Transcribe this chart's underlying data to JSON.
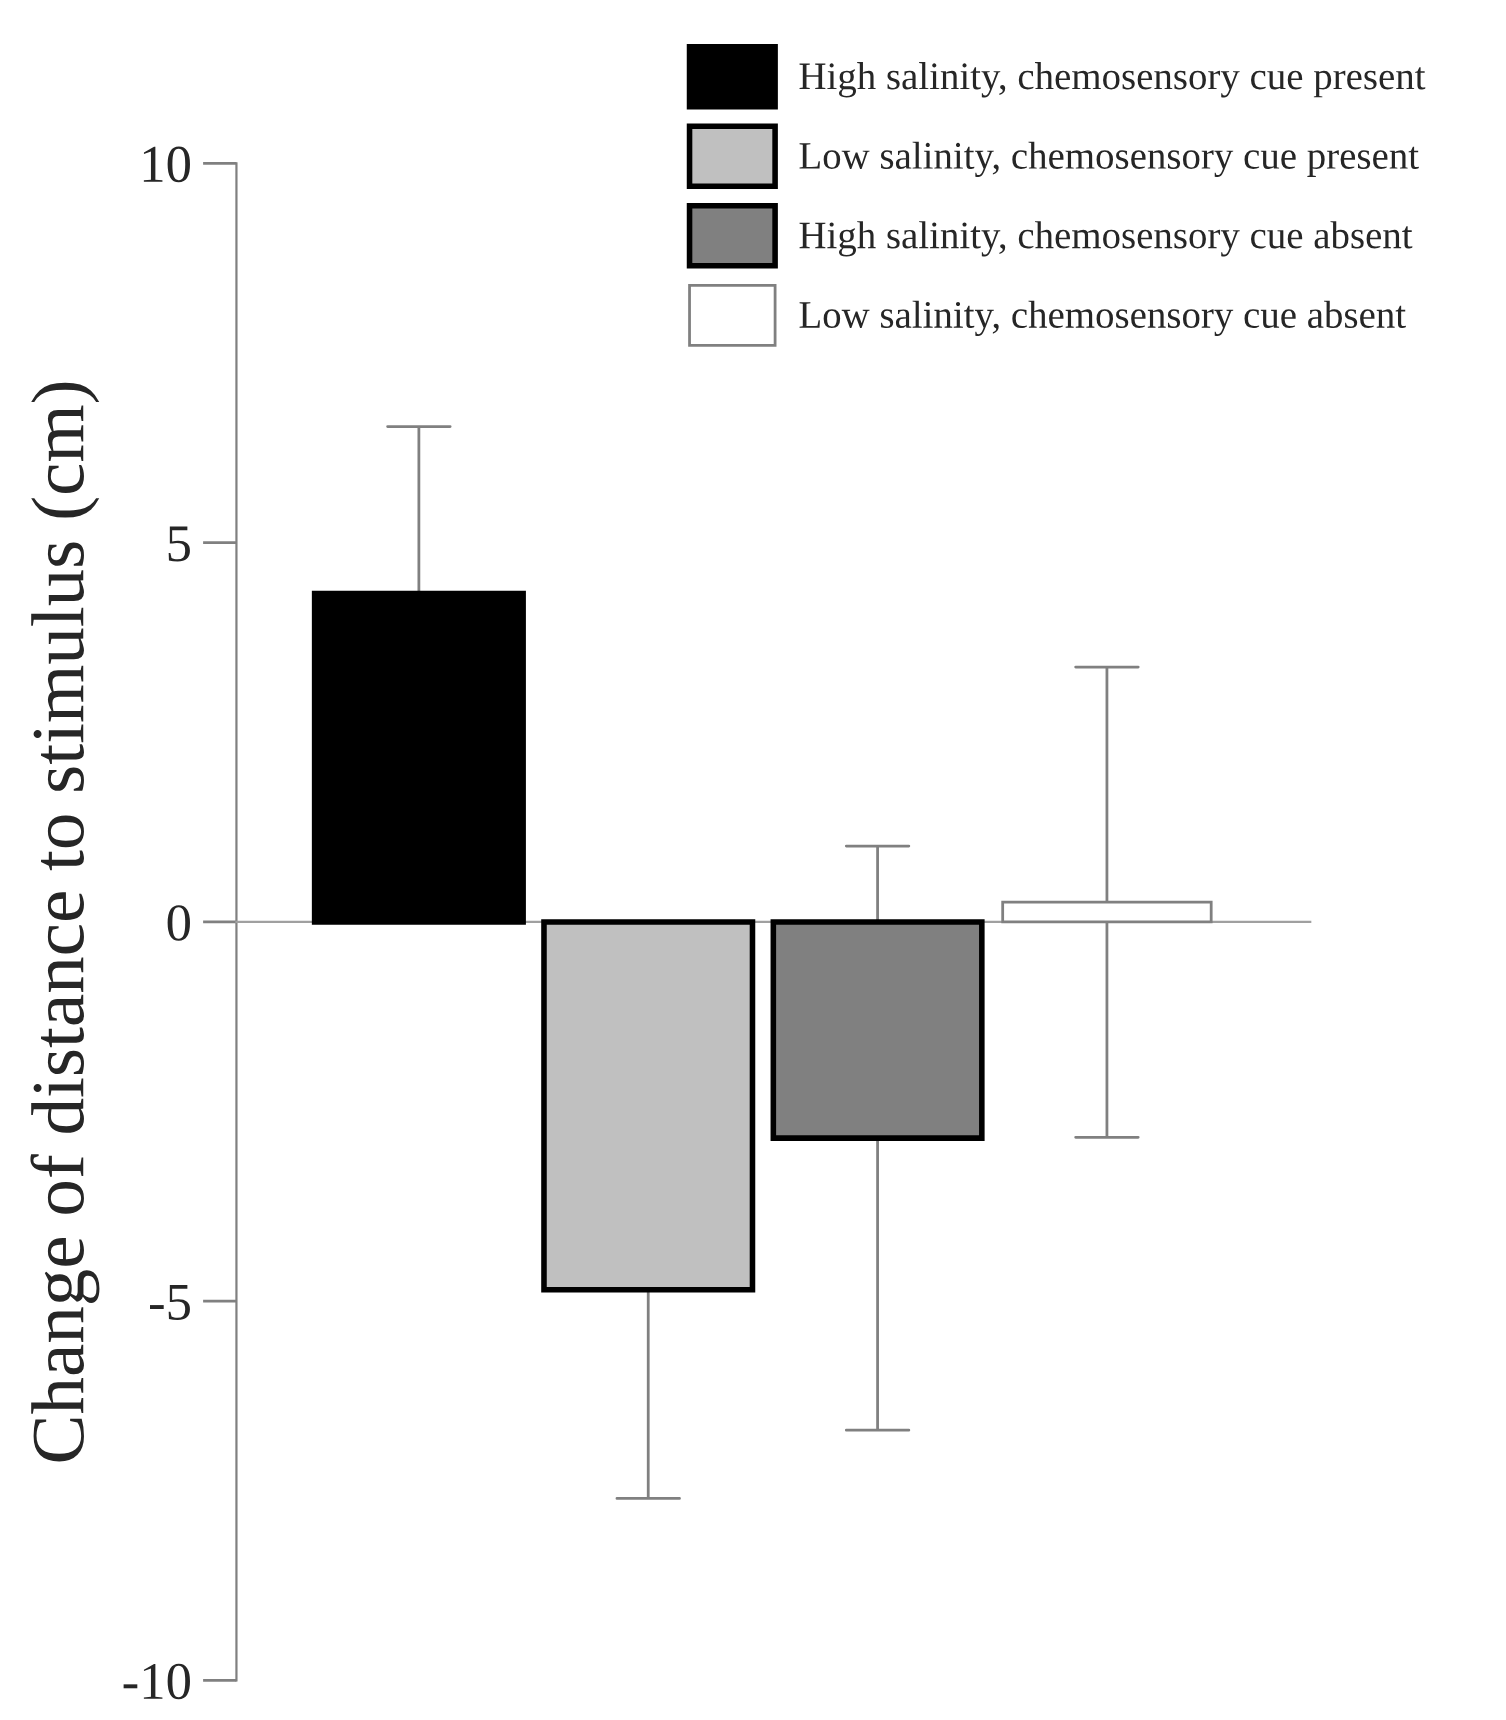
{
  "chart_data": {
    "type": "bar",
    "ylabel": "Change of distance to stimulus (cm)",
    "categories": [
      null
    ],
    "series": [
      {
        "name": "High salinity, chemosensory cue present",
        "color": "#000000",
        "values": [
          4.33
        ],
        "errors": [
          2.2
        ]
      },
      {
        "name": "Low salinity, chemosensory cue present",
        "color": "#c0c0c0",
        "values": [
          -4.85
        ],
        "errors": [
          2.75
        ]
      },
      {
        "name": "High salinity, chemosensory cue absent",
        "color": "#808080",
        "values": [
          -2.85
        ],
        "errors": [
          3.85
        ]
      },
      {
        "name": "Low salinity, chemosensory cue absent",
        "color": "#ffffff",
        "values": [
          0.26
        ],
        "errors": [
          3.1
        ]
      }
    ],
    "ylim": [
      -10,
      10
    ],
    "yticks": [
      -10,
      -5,
      0,
      5,
      10
    ],
    "legend": "top right"
  }
}
